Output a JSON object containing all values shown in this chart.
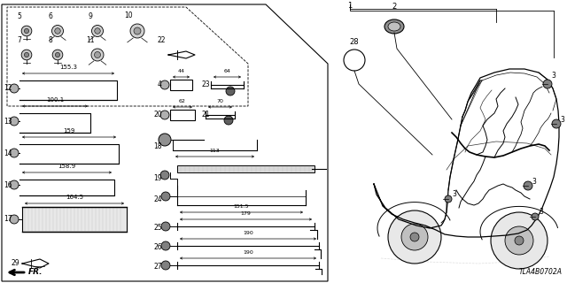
{
  "bg_color": "#ffffff",
  "line_color": "#000000",
  "gray_color": "#888888",
  "light_gray": "#cccccc",
  "diagram_number": "TLA4B0702A",
  "fig_width": 6.4,
  "fig_height": 3.2,
  "dpi": 100
}
